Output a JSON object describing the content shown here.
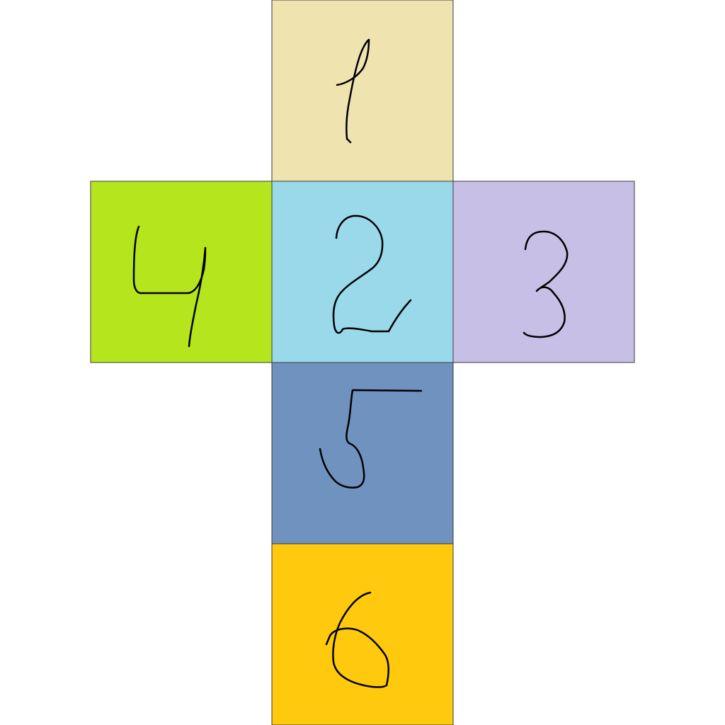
{
  "faces": [
    {
      "id": "top",
      "number": "1",
      "color": "#EFE3B0"
    },
    {
      "id": "left",
      "number": "4",
      "color": "#B5E61D"
    },
    {
      "id": "center",
      "number": "2",
      "color": "#99D9EA"
    },
    {
      "id": "right",
      "number": "3",
      "color": "#C8BFE7"
    },
    {
      "id": "middle",
      "number": "5",
      "color": "#7092BE"
    },
    {
      "id": "bottom",
      "number": "6",
      "color": "#FFC90E"
    }
  ]
}
